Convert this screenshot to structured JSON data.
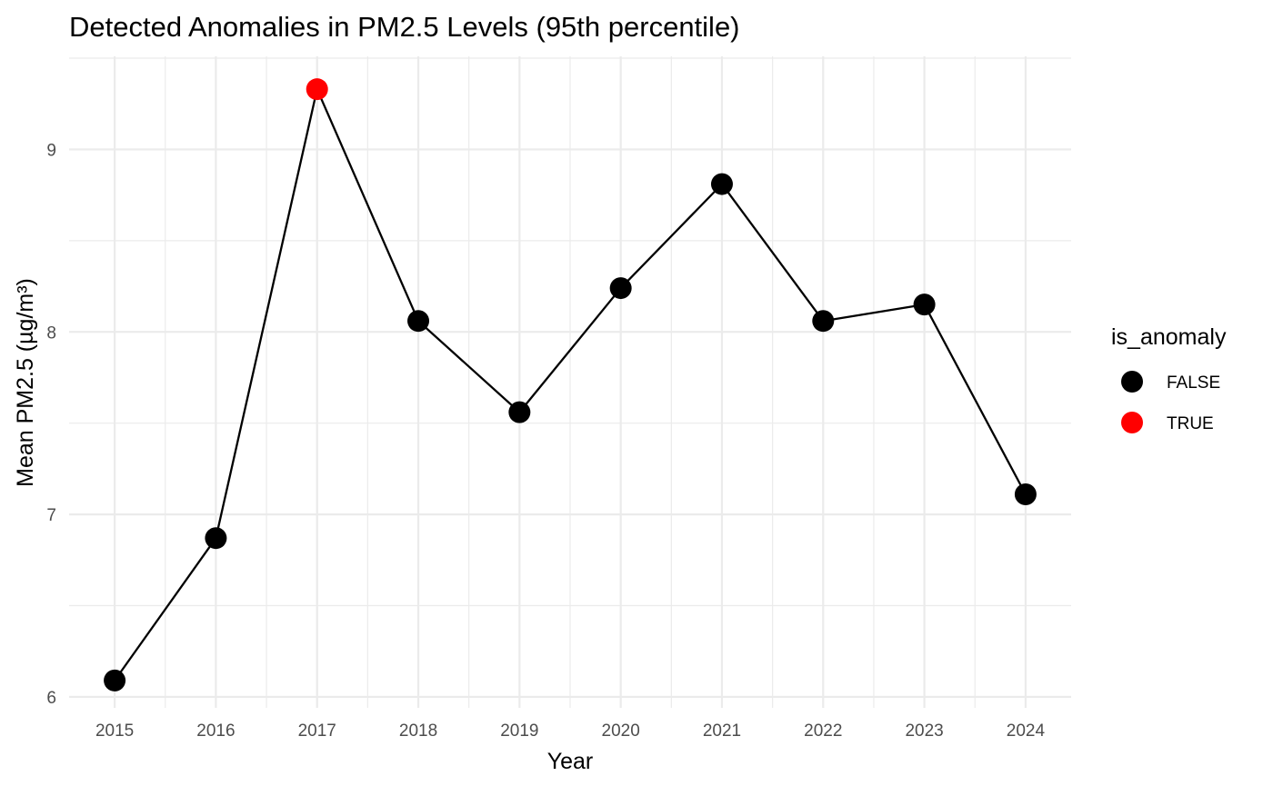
{
  "chart_data": {
    "type": "line",
    "title": "Detected Anomalies in PM2.5 Levels (95th percentile)",
    "xlabel": "Year",
    "ylabel": "Mean PM2.5 (µg/m³)",
    "x": [
      2015,
      2016,
      2017,
      2018,
      2019,
      2020,
      2021,
      2022,
      2023,
      2024
    ],
    "x_tick_labels": [
      "2015",
      "2016",
      "2017",
      "2018",
      "2019",
      "2020",
      "2021",
      "2022",
      "2023",
      "2024"
    ],
    "y_ticks": [
      6,
      7,
      8,
      9
    ],
    "y_tick_labels": [
      "6",
      "7",
      "8",
      "9"
    ],
    "xlim": [
      2014.55,
      2024.45
    ],
    "ylim": [
      5.94,
      9.51
    ],
    "series": [
      {
        "values": [
          6.09,
          6.87,
          9.33,
          8.06,
          7.56,
          8.24,
          8.81,
          8.06,
          8.15,
          7.11
        ],
        "is_anomaly": [
          false,
          false,
          true,
          false,
          false,
          false,
          false,
          false,
          false,
          false
        ]
      }
    ],
    "line_color": "#000000",
    "legend": {
      "title": "is_anomaly",
      "placement": "right",
      "entries": [
        {
          "label": "FALSE",
          "color": "#000000"
        },
        {
          "label": "TRUE",
          "color": "#ff0000"
        }
      ]
    },
    "grid": true,
    "grid_color": "#ebebeb"
  }
}
